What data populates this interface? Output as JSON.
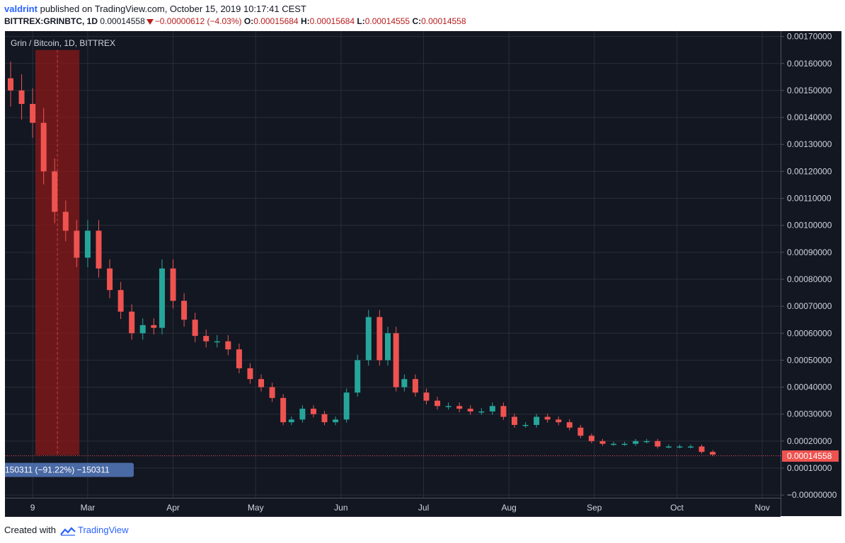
{
  "header": {
    "author": "valdrint",
    "published_text": "published on TradingView.com, October 15, 2019 10:17:41 CEST"
  },
  "ticker": {
    "symbol": "BITTREX:GRINBTC, 1D",
    "last": "0.00014558",
    "change": "−0.00000612 (−4.03%)",
    "open_label": "O:",
    "open": "0.00015684",
    "high_label": "H:",
    "high": "0.00015684",
    "low_label": "L:",
    "low": "0.00014555",
    "close_label": "C:",
    "close": "0.00014558"
  },
  "footer": {
    "created_with": "Created with",
    "brand": "TradingView"
  },
  "colors": {
    "background": "#131722",
    "grid": "#2a2e39",
    "up": "#26a69a",
    "down": "#ef5350",
    "price_line": "#ef5350",
    "highlight": "#8b1a1a",
    "measure_badge": "#4a6aa5"
  },
  "chart_data": {
    "type": "candlestick",
    "title": "Grin / Bitcoin, 1D, BITTREX",
    "ylim": [
      -1e-05,
      0.00172
    ],
    "y_ticks": [
      "0.00170000",
      "0.00160000",
      "0.00150000",
      "0.00140000",
      "0.00130000",
      "0.00120000",
      "0.00110000",
      "0.00100000",
      "0.00090000",
      "0.00080000",
      "0.00070000",
      "0.00060000",
      "0.00050000",
      "0.00040000",
      "0.00030000",
      "0.00020000",
      "0.00010000",
      "−0.00000000"
    ],
    "x_ticks": [
      "9",
      "Mar",
      "Apr",
      "May",
      "Jun",
      "Jul",
      "Aug",
      "Sep",
      "Oct",
      "Nov"
    ],
    "last_price_label": "0.00014558",
    "last_price": 0.00014558,
    "measure_label": "150311 (−91.22%) −150311",
    "series": [
      {
        "name": "GRINBTC",
        "x": [
          "2019-02-01",
          "2019-02-05",
          "2019-02-09",
          "2019-02-13",
          "2019-02-17",
          "2019-02-21",
          "2019-02-25",
          "2019-03-01",
          "2019-03-05",
          "2019-03-09",
          "2019-03-13",
          "2019-03-17",
          "2019-03-21",
          "2019-03-25",
          "2019-03-28",
          "2019-04-01",
          "2019-04-05",
          "2019-04-09",
          "2019-04-13",
          "2019-04-17",
          "2019-04-21",
          "2019-04-25",
          "2019-04-29",
          "2019-05-03",
          "2019-05-07",
          "2019-05-11",
          "2019-05-14",
          "2019-05-18",
          "2019-05-22",
          "2019-05-26",
          "2019-05-30",
          "2019-06-03",
          "2019-06-07",
          "2019-06-11",
          "2019-06-15",
          "2019-06-18",
          "2019-06-21",
          "2019-06-24",
          "2019-06-28",
          "2019-07-02",
          "2019-07-06",
          "2019-07-10",
          "2019-07-14",
          "2019-07-18",
          "2019-07-22",
          "2019-07-26",
          "2019-07-30",
          "2019-08-03",
          "2019-08-07",
          "2019-08-11",
          "2019-08-15",
          "2019-08-19",
          "2019-08-23",
          "2019-08-27",
          "2019-08-31",
          "2019-09-04",
          "2019-09-08",
          "2019-09-12",
          "2019-09-16",
          "2019-09-20",
          "2019-09-24",
          "2019-09-28",
          "2019-10-02",
          "2019-10-06",
          "2019-10-10",
          "2019-10-14"
        ],
        "close": [
          0.0015,
          0.00145,
          0.00138,
          0.0012,
          0.00105,
          0.00098,
          0.00088,
          0.00098,
          0.00084,
          0.00076,
          0.00068,
          0.0006,
          0.00063,
          0.00062,
          0.00084,
          0.00072,
          0.00065,
          0.00059,
          0.00057,
          0.00057,
          0.00054,
          0.00047,
          0.00043,
          0.0004,
          0.00036,
          0.00027,
          0.00028,
          0.00032,
          0.0003,
          0.00027,
          0.00028,
          0.00038,
          0.0005,
          0.00066,
          0.0005,
          0.0006,
          0.0004,
          0.00043,
          0.00038,
          0.00035,
          0.00033,
          0.00033,
          0.00032,
          0.00031,
          0.00031,
          0.00033,
          0.00029,
          0.00026,
          0.00026,
          0.00029,
          0.00028,
          0.00027,
          0.00025,
          0.00022,
          0.0002,
          0.00019,
          0.00019,
          0.00019,
          0.0002,
          0.0002,
          0.00018,
          0.00018,
          0.00018,
          0.00018,
          0.00016,
          0.00015
        ]
      }
    ]
  }
}
